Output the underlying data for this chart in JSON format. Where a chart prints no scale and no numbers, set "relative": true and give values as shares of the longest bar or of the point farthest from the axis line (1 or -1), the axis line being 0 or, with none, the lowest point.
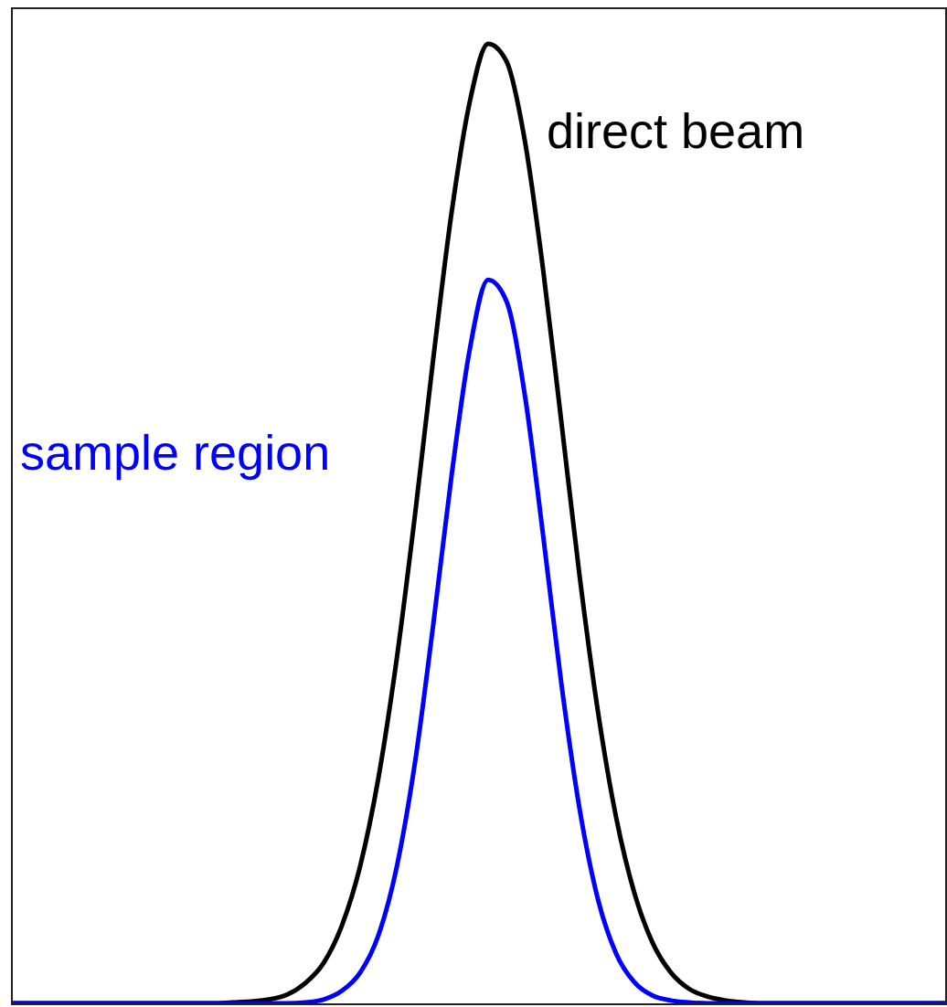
{
  "chart_data": {
    "type": "line",
    "relative": true,
    "grid": false,
    "legend": false,
    "marker": "none",
    "line_style": "solid",
    "tick_labels": false,
    "categories": [
      null,
      null,
      null,
      null,
      null,
      null,
      null,
      null,
      null,
      null,
      null,
      null,
      null,
      null,
      null,
      null,
      null,
      null,
      null,
      null,
      null,
      null,
      null,
      null,
      null,
      null,
      null,
      null,
      null,
      null,
      null,
      null,
      null,
      null,
      null,
      null,
      null,
      null,
      null,
      null,
      null,
      null,
      null,
      null,
      null,
      null,
      null,
      null,
      null,
      null,
      null,
      null
    ],
    "series": [
      {
        "name": "direct beam",
        "color": "#000000",
        "values": [
          0,
          0,
          0,
          0,
          0,
          0,
          0,
          0,
          0,
          0,
          0,
          0,
          0.001,
          0.002,
          0.004,
          0.009,
          0.021,
          0.042,
          0.081,
          0.143,
          0.235,
          0.359,
          0.509,
          0.672,
          0.824,
          0.94,
          1,
          0.982,
          0.9,
          0.766,
          0.607,
          0.446,
          0.305,
          0.194,
          0.115,
          0.063,
          0.032,
          0.015,
          0.007,
          0.003,
          0.001,
          0,
          0,
          0,
          0,
          0,
          0,
          0,
          0,
          0,
          0,
          0
        ]
      },
      {
        "name": "sample region",
        "color": "#0000ff",
        "values": [
          0,
          0,
          0,
          0,
          0,
          0,
          0,
          0,
          0,
          0,
          0,
          0,
          0,
          0,
          0,
          0,
          0.001,
          0.004,
          0.013,
          0.032,
          0.071,
          0.142,
          0.251,
          0.395,
          0.55,
          0.682,
          0.754,
          0.732,
          0.635,
          0.489,
          0.334,
          0.203,
          0.109,
          0.052,
          0.022,
          0.008,
          0.003,
          0.001,
          0,
          0,
          0,
          0,
          0,
          0,
          0,
          0,
          0,
          0,
          0,
          0,
          0,
          0
        ]
      }
    ]
  }
}
